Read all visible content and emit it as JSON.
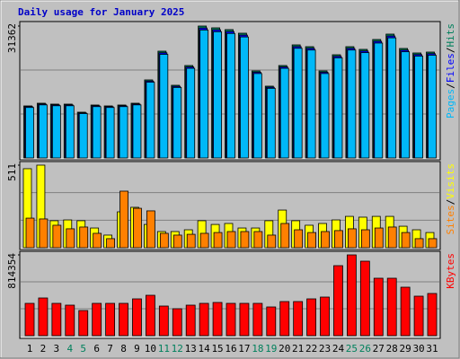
{
  "chart_data": {
    "type": "bar",
    "title": "Daily usage for January 2025",
    "categories": [
      "1",
      "2",
      "3",
      "4",
      "5",
      "6",
      "7",
      "8",
      "9",
      "10",
      "11",
      "12",
      "13",
      "14",
      "15",
      "16",
      "17",
      "18",
      "19",
      "20",
      "21",
      "22",
      "23",
      "24",
      "25",
      "26",
      "27",
      "28",
      "29",
      "30",
      "31"
    ],
    "category_colors": [
      "#000000",
      "#000000",
      "#000000",
      "#00805c",
      "#00805c",
      "#000000",
      "#000000",
      "#000000",
      "#000000",
      "#000000",
      "#00805c",
      "#00805c",
      "#000000",
      "#000000",
      "#000000",
      "#000000",
      "#000000",
      "#00805c",
      "#00805c",
      "#000000",
      "#000000",
      "#000000",
      "#000000",
      "#000000",
      "#00805c",
      "#00805c",
      "#000000",
      "#000000",
      "#000000",
      "#000000",
      "#000000"
    ],
    "legend_separator": "/",
    "panels": [
      {
        "ylim": [
          0,
          31362
        ],
        "yticks": [
          31362
        ],
        "series": [
          {
            "name": "Hits",
            "color": "#00805c",
            "values": [
              12374,
              13014,
              12801,
              12801,
              10881,
              12588,
              12374,
              12588,
              13014,
              18561,
              25388,
              17281,
              21975,
              31362,
              30935,
              30509,
              29655,
              20695,
              17068,
              21975,
              26882,
              26455,
              20695,
              24535,
              26455,
              25815,
              28162,
              29442,
              26029,
              24962,
              25175
            ]
          },
          {
            "name": "Files",
            "color": "#0000ff",
            "values": [
              12188,
              12819,
              12609,
              12609,
              10718,
              12399,
              12188,
              12399,
              12819,
              18283,
              25007,
              17022,
              21645,
              30892,
              30471,
              30051,
              29210,
              20385,
              16812,
              21645,
              26479,
              26058,
              20385,
              24167,
              26058,
              25428,
              27740,
              29000,
              25639,
              24588,
              24797
            ]
          },
          {
            "name": "Pages",
            "color": "#00b8f8",
            "values": [
              12003,
              12624,
              12417,
              12417,
              10555,
              12210,
              12003,
              12210,
              12624,
              18004,
              24626,
              16763,
              21316,
              30421,
              30007,
              29594,
              28765,
              20074,
              16556,
              21316,
              26076,
              25661,
              20074,
              23799,
              25661,
              25041,
              27317,
              28559,
              25248,
              24213,
              24420
            ]
          }
        ]
      },
      {
        "ylim": [
          0,
          511
        ],
        "yticks": [
          511
        ],
        "series": [
          {
            "name": "Visits",
            "color": "#ffff00",
            "values": [
              489,
              511,
              167,
              172,
              167,
              122,
              78,
              222,
              250,
              144,
              100,
              100,
              111,
              167,
              144,
              150,
              122,
              122,
              167,
              233,
              167,
              139,
              150,
              172,
              194,
              189,
              194,
              194,
              133,
              111,
              94
            ]
          },
          {
            "name": "Sites",
            "color": "#ff8000",
            "values": [
              183,
              178,
              139,
              117,
              128,
              89,
              56,
              350,
              244,
              228,
              89,
              78,
              83,
              89,
              94,
              100,
              100,
              100,
              78,
              150,
              111,
              94,
              100,
              106,
              117,
              111,
              122,
              128,
              94,
              56,
              56
            ]
          }
        ]
      },
      {
        "ylim": [
          0,
          814354
        ],
        "yticks": [
          814354
        ],
        "series": [
          {
            "name": "KBytes",
            "color": "#ff0000",
            "values": [
              325742,
              380032,
              325742,
              307645,
              253355,
              325742,
              325742,
              325742,
              370983,
              407177,
              298597,
              271451,
              307645,
              325742,
              334790,
              325742,
              325742,
              325742,
              289548,
              343838,
              343838,
              370983,
              389080,
              705774,
              814354,
              751015,
              579096,
              579096,
              488612,
              398129,
              425274
            ]
          }
        ]
      }
    ]
  }
}
